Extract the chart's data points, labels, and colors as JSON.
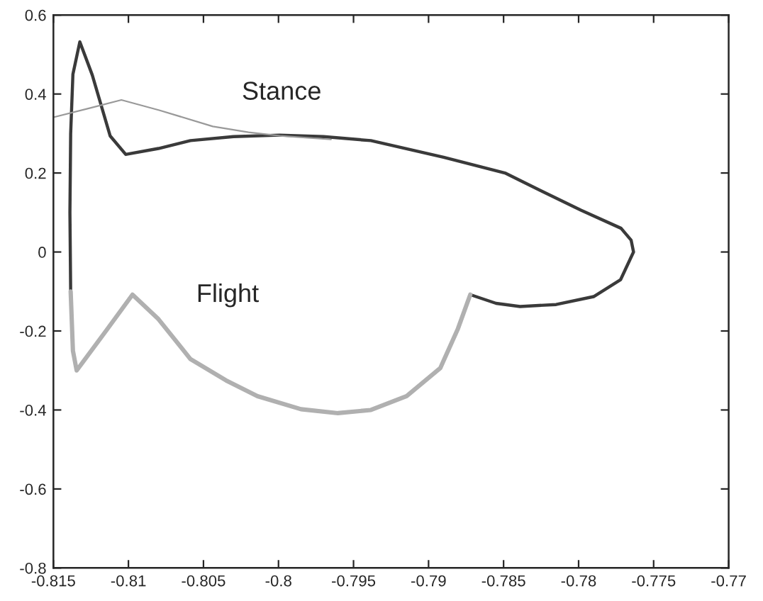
{
  "chart_data": {
    "type": "line",
    "series": [
      {
        "color": "#3a3a3a",
        "x": [
          -0.78722,
          -0.7855,
          -0.7839,
          -0.7815,
          -0.779,
          -0.7772,
          -0.77634,
          -0.7765,
          -0.77717,
          -0.77985,
          -0.7825,
          -0.78491,
          -0.789,
          -0.79384,
          -0.797,
          -0.79991,
          -0.803,
          -0.80587,
          -0.808,
          -0.81018,
          -0.81122,
          -0.81241,
          -0.81324,
          -0.8137,
          -0.81385,
          -0.8139,
          -0.81385
        ],
        "values": [
          -0.108,
          -0.13,
          -0.138,
          -0.133,
          -0.113,
          -0.07,
          0.0,
          0.03,
          0.06,
          0.106,
          0.155,
          0.2,
          0.24,
          0.282,
          0.292,
          0.296,
          0.292,
          0.282,
          0.262,
          0.247,
          0.294,
          0.448,
          0.532,
          0.45,
          0.3,
          0.1,
          -0.1
        ]
      },
      {
        "color": "#b0b0b0",
        "x": [
          -0.81385,
          -0.8137,
          -0.81345,
          -0.8115,
          -0.80973,
          -0.808,
          -0.80587,
          -0.8035,
          -0.8014,
          -0.7985,
          -0.79604,
          -0.79384,
          -0.79146,
          -0.78922,
          -0.78804,
          -0.78722
        ],
        "values": [
          -0.1,
          -0.25,
          -0.3,
          -0.2,
          -0.108,
          -0.17,
          -0.271,
          -0.325,
          -0.365,
          -0.398,
          -0.408,
          -0.4,
          -0.365,
          -0.294,
          -0.194,
          -0.108
        ]
      },
      {
        "color": "#999999",
        "x": [
          -0.815,
          -0.8125,
          -0.81047,
          -0.80795,
          -0.80438,
          -0.802,
          -0.79991,
          -0.7965
        ],
        "values": [
          0.341,
          0.365,
          0.385,
          0.359,
          0.318,
          0.303,
          0.294,
          0.285
        ]
      }
    ],
    "xlim": [
      -0.815,
      -0.77
    ],
    "xticks": [
      -0.815,
      -0.81,
      -0.805,
      -0.8,
      -0.795,
      -0.79,
      -0.785,
      -0.78,
      -0.775,
      -0.77
    ],
    "ylim": [
      -0.8,
      0.6
    ],
    "yticks": [
      -0.8,
      -0.6,
      -0.4,
      -0.2,
      0,
      0.2,
      0.4,
      0.6
    ],
    "annotations": [
      "Stance",
      "Flight"
    ],
    "grid": false,
    "legend": false
  }
}
